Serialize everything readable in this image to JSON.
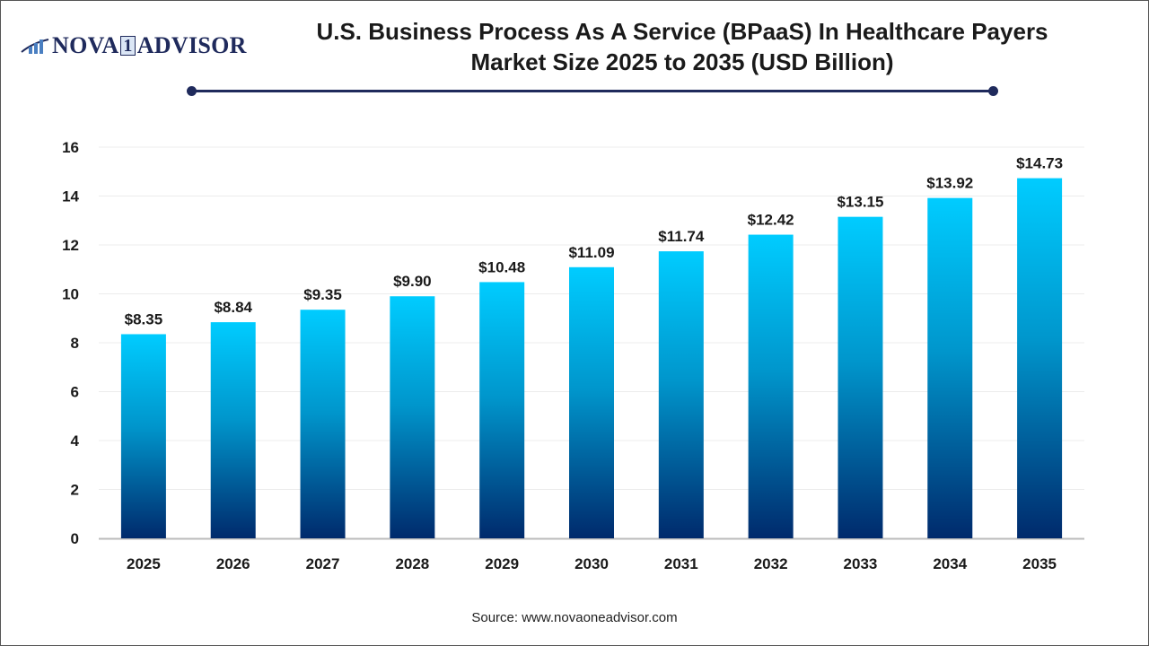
{
  "logo": {
    "text_left": "NOVA",
    "text_mid": "1",
    "text_right": "ADVISOR"
  },
  "title_line1": "U.S. Business Process As A Service (BPaaS) In Healthcare Payers",
  "title_line2": "Market Size 2025 to 2035 (USD Billion)",
  "source": "Source: www.novaoneadvisor.com",
  "colors": {
    "bar_top": "#00CCFF",
    "bar_bottom": "#002A6C",
    "title_rule": "#1f2a5c"
  },
  "chart_data": {
    "type": "bar",
    "categories": [
      "2025",
      "2026",
      "2027",
      "2028",
      "2029",
      "2030",
      "2031",
      "2032",
      "2033",
      "2034",
      "2035"
    ],
    "values": [
      8.35,
      8.84,
      9.35,
      9.9,
      10.48,
      11.09,
      11.74,
      12.42,
      13.15,
      13.92,
      14.73
    ],
    "data_labels": [
      "$8.35",
      "$8.84",
      "$9.35",
      "$9.90",
      "$10.48",
      "$11.09",
      "$11.74",
      "$12.42",
      "$13.15",
      "$13.92",
      "$14.73"
    ],
    "yticks": [
      0,
      2,
      4,
      6,
      8,
      10,
      12,
      14,
      16
    ],
    "ylim": [
      0,
      16
    ],
    "grid": true,
    "xlabel": "",
    "ylabel": ""
  }
}
